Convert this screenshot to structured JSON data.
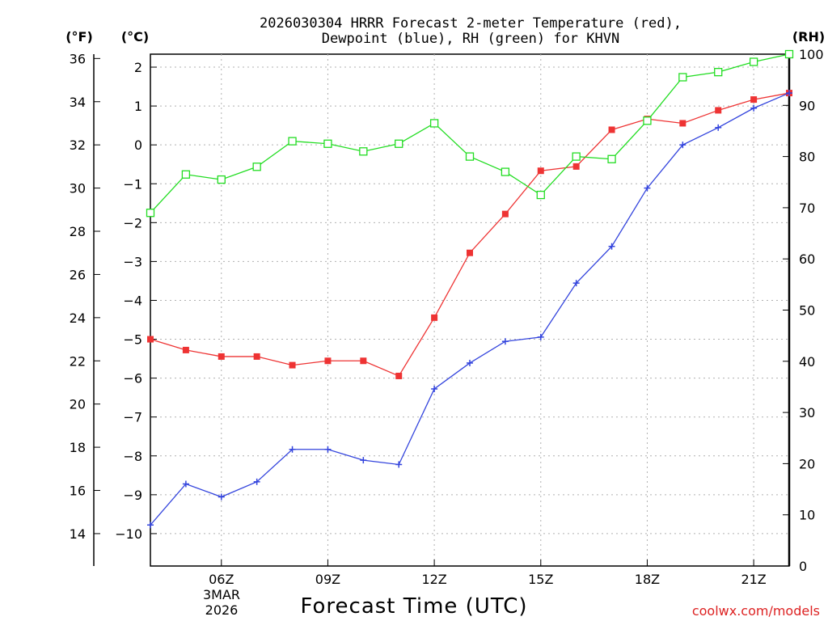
{
  "title_line1": "2026030304 HRRR Forecast 2-meter Temperature (red),",
  "title_line2": "Dewpoint (blue), RH (green) for KHVN",
  "units": {
    "f": "(°F)",
    "c": "(°C)",
    "rh": "(RH)"
  },
  "date": {
    "day": "3MAR",
    "year": "2026"
  },
  "credit": "coolwx.com/models",
  "colors": {
    "temp": "#ee3333",
    "dewpoint": "#3344dd",
    "rh": "#22dd22",
    "credit": "#dd2222"
  },
  "chart_data": {
    "type": "line",
    "title": "2026030304 HRRR Forecast 2-meter Temperature (red), Dewpoint (blue), RH (green) for KHVN",
    "xlabel": "Forecast Time (UTC)",
    "x_hours": [
      4,
      5,
      6,
      7,
      8,
      9,
      10,
      11,
      12,
      13,
      14,
      15,
      16,
      17,
      18,
      19,
      20,
      21,
      22
    ],
    "x_range": [
      4,
      22
    ],
    "x_ticks": [
      {
        "hour": 6,
        "label": "06Z"
      },
      {
        "hour": 9,
        "label": "09Z"
      },
      {
        "hour": 12,
        "label": "12Z"
      },
      {
        "hour": 15,
        "label": "15Z"
      },
      {
        "hour": 18,
        "label": "18Z"
      },
      {
        "hour": 21,
        "label": "21Z"
      }
    ],
    "y_left_f": {
      "label": "(°F)",
      "range": [
        12.5,
        36.2
      ],
      "ticks": [
        14,
        16,
        18,
        20,
        22,
        24,
        26,
        28,
        30,
        32,
        34,
        36
      ]
    },
    "y_left_c": {
      "label": "(°C)",
      "ticks": [
        -10,
        -9,
        -8,
        -7,
        -6,
        -5,
        -4,
        -3,
        -2,
        -1,
        0,
        1,
        2
      ]
    },
    "y_right_rh": {
      "label": "(RH)",
      "range": [
        0,
        100
      ],
      "ticks": [
        0,
        10,
        20,
        30,
        40,
        50,
        60,
        70,
        80,
        90,
        100
      ]
    },
    "series": [
      {
        "name": "Temperature",
        "color": "red",
        "unit": "F",
        "marker": "filled-square",
        "values": [
          23.0,
          22.5,
          22.2,
          22.2,
          21.8,
          22.0,
          22.0,
          21.3,
          24.0,
          27.0,
          28.8,
          30.8,
          31.0,
          32.7,
          33.2,
          33.0,
          33.6,
          34.1,
          34.4
        ]
      },
      {
        "name": "Dewpoint",
        "color": "blue",
        "unit": "F",
        "marker": "plus",
        "values": [
          14.4,
          16.3,
          15.7,
          16.4,
          17.9,
          17.9,
          17.4,
          17.2,
          20.7,
          21.9,
          22.9,
          23.1,
          25.6,
          27.3,
          30.0,
          32.0,
          32.8,
          33.7,
          34.4
        ]
      },
      {
        "name": "Relative Humidity",
        "color": "green",
        "unit": "%",
        "marker": "open-square",
        "values": [
          69,
          76.5,
          75.5,
          78,
          83,
          82.5,
          81,
          82.5,
          86.5,
          80,
          77,
          72.5,
          80,
          79.5,
          87,
          95.5,
          96.5,
          98.5,
          100
        ]
      }
    ],
    "grid": true
  }
}
